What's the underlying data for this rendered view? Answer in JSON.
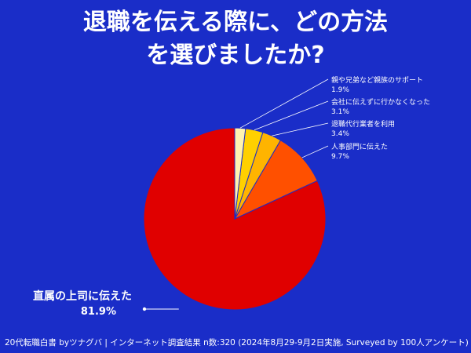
{
  "title": {
    "line1": "退職を伝える際に、どの方法",
    "line2": "を選びましたか?"
  },
  "colors": {
    "background": "#1a2dc8",
    "text": "#ffffff",
    "slices": [
      "#e00000",
      "#ff5000",
      "#ffb400",
      "#ffd000",
      "#fff3b0"
    ]
  },
  "chart_data": {
    "type": "pie",
    "start": "12 o'clock",
    "direction": "counterclockwise",
    "slices": [
      {
        "label": "直属の上司に伝えた",
        "value": 81.9,
        "value_label": "81.9%"
      },
      {
        "label": "人事部門に伝えた",
        "value": 9.7,
        "value_label": "9.7%"
      },
      {
        "label": "退職代行業者を利用",
        "value": 3.4,
        "value_label": "3.4%"
      },
      {
        "label": "会社に伝えずに行かなくなった",
        "value": 3.1,
        "value_label": "3.1%"
      },
      {
        "label": "親や兄弟など親族のサポート",
        "value": 1.9,
        "value_label": "1.9%"
      }
    ]
  },
  "footer": "20代転職白書 byツナグバ | インターネット調査結果 n数:320 (2024年8月29-9月2日実施, Surveyed by 100人アンケート)"
}
